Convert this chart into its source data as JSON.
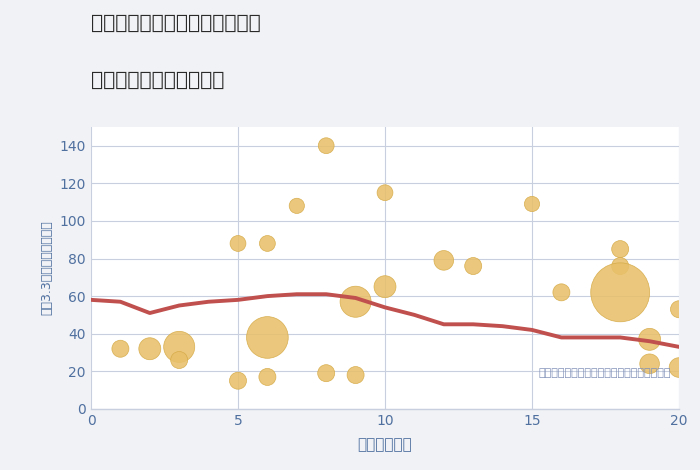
{
  "title_line1": "福岡県北九州市小倉北区末広の",
  "title_line2": "駅距離別中古戸建て価格",
  "xlabel": "駅距離（分）",
  "ylabel": "坪（3.3㎡）単価（万円）",
  "annotation": "円の大きさは、取引のあった物件面積を示す",
  "bg_color": "#f0f2f5",
  "plot_bg_color": "#ffffff",
  "scatter_color": "#E8C06A",
  "scatter_edge_color": "#D4A843",
  "line_color": "#C0504D",
  "grid_color": "#c8d0e0",
  "title_color": "#2a2a2a",
  "axis_color": "#7090b0",
  "tick_color": "#5070a0",
  "annotation_color": "#8090b8",
  "label_color": "#5070a0",
  "xlim": [
    0,
    20
  ],
  "ylim": [
    0,
    150
  ],
  "xticks": [
    0,
    5,
    10,
    15,
    20
  ],
  "yticks": [
    0,
    20,
    40,
    60,
    80,
    100,
    120,
    140
  ],
  "scatter_x": [
    1,
    2,
    3,
    3,
    5,
    5,
    6,
    6,
    6,
    7,
    8,
    8,
    9,
    9,
    10,
    10,
    12,
    13,
    15,
    16,
    18,
    18,
    18,
    19,
    19,
    20,
    20
  ],
  "scatter_y": [
    32,
    32,
    33,
    26,
    88,
    15,
    88,
    17,
    38,
    108,
    140,
    19,
    57,
    18,
    115,
    65,
    79,
    76,
    109,
    62,
    85,
    76,
    62,
    37,
    24,
    53,
    22
  ],
  "scatter_s": [
    150,
    250,
    500,
    150,
    130,
    150,
    130,
    150,
    900,
    120,
    130,
    150,
    500,
    150,
    130,
    250,
    200,
    150,
    120,
    150,
    150,
    150,
    1800,
    250,
    200,
    150,
    200
  ],
  "line_x": [
    0,
    1,
    2,
    3,
    4,
    5,
    6,
    7,
    8,
    9,
    10,
    11,
    12,
    13,
    14,
    15,
    16,
    17,
    18,
    19,
    20
  ],
  "line_y": [
    58,
    57,
    51,
    55,
    57,
    58,
    60,
    61,
    61,
    59,
    54,
    50,
    45,
    45,
    44,
    42,
    38,
    38,
    38,
    36,
    33
  ]
}
